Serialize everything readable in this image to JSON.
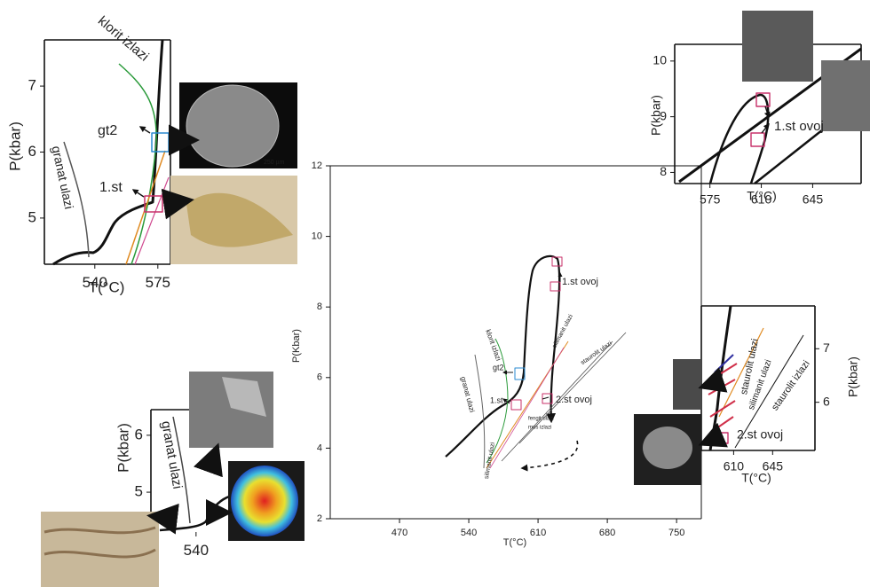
{
  "panels": [
    {
      "xlabel": "T(°C)",
      "ylabel": "P(Kbar)",
      "xlim": [
        400,
        775
      ],
      "ylim": [
        2,
        12
      ],
      "xticks": [
        470,
        540,
        610,
        680,
        750
      ],
      "yticks": [
        2,
        4,
        6,
        8,
        10,
        12
      ],
      "annotations": [
        "1.st ovoj",
        "klorit izlazi",
        "silimanit ulazi",
        "staurolit ulazi",
        "gt2",
        "1.st",
        "2.st ovoj",
        "granat ulazi",
        "silimanit ulazi",
        "fengit ulazi",
        "mus izlazi"
      ]
    },
    {
      "xlabel": "T(°C)",
      "ylabel": "P(kbar)",
      "xlim": [
        512,
        582
      ],
      "ylim": [
        4.3,
        7.7
      ],
      "xticks": [
        540,
        575
      ],
      "yticks": [
        5,
        6,
        7
      ],
      "annotations": [
        "klorit izlazi",
        "gt2",
        "1.st",
        "granat ulazi",
        "250 µm"
      ]
    },
    {
      "xlabel": "T(°C)",
      "ylabel": "P(kbar)",
      "xlim": [
        551,
        678
      ],
      "ylim": [
        7.8,
        10.3
      ],
      "xticks": [
        575,
        610,
        645
      ],
      "yticks": [
        8,
        9,
        10
      ],
      "annotations": [
        "1.st ovoj"
      ]
    },
    {
      "xlabel": "T(°C)",
      "ylabel": "P(kbar)",
      "xlim": [
        581,
        683
      ],
      "ylim": [
        5.1,
        7.8
      ],
      "xticks": [
        610,
        645
      ],
      "yticks": [
        6,
        7
      ],
      "annotations": [
        "staurolit ulazi",
        "silimanit ulazi",
        "staurolit izlazi",
        "2.st ovoj"
      ]
    },
    {
      "ylabel": "P(kbar)",
      "xlim": [
        514,
        559
      ],
      "ylim": [
        4.3,
        6.45
      ],
      "xticks": [
        540
      ],
      "yticks": [
        5,
        6
      ],
      "annotations": [
        "granat ulazi"
      ]
    }
  ]
}
